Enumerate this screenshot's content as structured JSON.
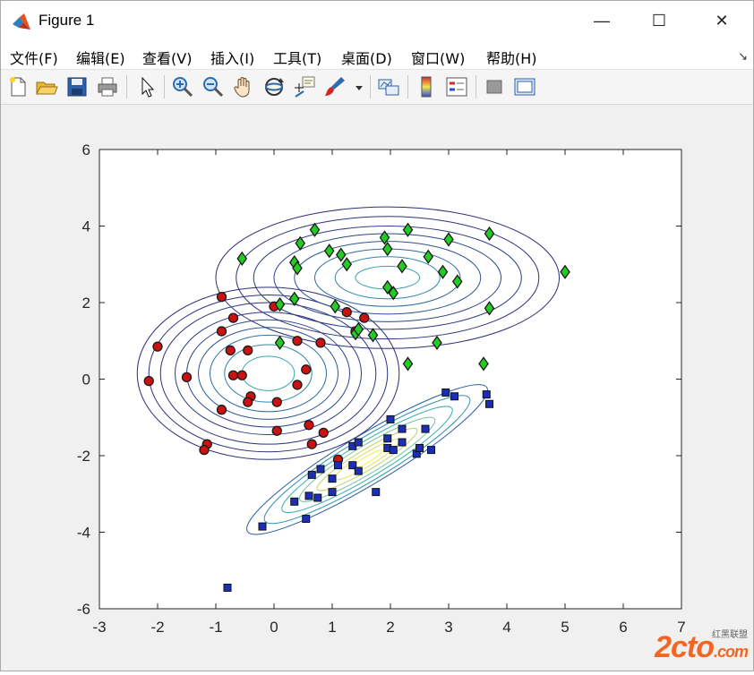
{
  "window": {
    "title": "Figure 1",
    "minimize_glyph": "—",
    "maximize_glyph": "☐",
    "close_glyph": "✕"
  },
  "menu": {
    "items": [
      {
        "label": "文件(F)",
        "name": "menu-file"
      },
      {
        "label": "编辑(E)",
        "name": "menu-edit"
      },
      {
        "label": "查看(V)",
        "name": "menu-view"
      },
      {
        "label": "插入(I)",
        "name": "menu-insert"
      },
      {
        "label": "工具(T)",
        "name": "menu-tools"
      },
      {
        "label": "桌面(D)",
        "name": "menu-desktop"
      },
      {
        "label": "窗口(W)",
        "name": "menu-window"
      },
      {
        "label": "帮助(H)",
        "name": "menu-help"
      }
    ],
    "dock_arrow": "↘"
  },
  "toolbar": {
    "icons": [
      "new-file-icon",
      "open-folder-icon",
      "save-icon",
      "print-icon",
      "pointer-icon",
      "zoom-in-icon",
      "zoom-out-icon",
      "pan-hand-icon",
      "rotate-3d-icon",
      "data-cursor-icon",
      "brush-icon",
      "link-plot-icon",
      "colorbar-icon",
      "legend-icon",
      "hide-plot-tools-icon",
      "show-plot-tools-icon"
    ]
  },
  "colors": {
    "class_red": "#cc1111",
    "class_green": "#22cc22",
    "class_blue": "#1a2fb5",
    "contour_dark": "#2b2f7a",
    "watermark": "#f26522"
  },
  "watermark": {
    "main": "2cto",
    "sub": ".com",
    "small": "红黑联盟"
  },
  "chart_data": {
    "type": "scatter",
    "title": "",
    "xlabel": "",
    "ylabel": "",
    "xlim": [
      -3,
      7
    ],
    "ylim": [
      -6,
      6
    ],
    "xticks": [
      -3,
      -2,
      -1,
      0,
      1,
      2,
      3,
      4,
      5,
      6,
      7
    ],
    "yticks": [
      -6,
      -4,
      -2,
      0,
      2,
      4,
      6
    ],
    "grid": false,
    "series": [
      {
        "marker": "circle",
        "color": "#cc1111",
        "points": [
          [
            -2.0,
            0.85
          ],
          [
            -2.15,
            -0.05
          ],
          [
            -1.5,
            0.05
          ],
          [
            -0.9,
            2.15
          ],
          [
            -0.7,
            1.6
          ],
          [
            -0.9,
            1.25
          ],
          [
            -0.75,
            0.75
          ],
          [
            -0.7,
            0.1
          ],
          [
            -0.55,
            0.1
          ],
          [
            -0.45,
            0.75
          ],
          [
            -0.4,
            -0.45
          ],
          [
            -0.45,
            -0.6
          ],
          [
            -0.9,
            -0.8
          ],
          [
            -1.15,
            -1.7
          ],
          [
            -1.2,
            -1.85
          ],
          [
            0.0,
            1.9
          ],
          [
            0.05,
            -0.6
          ],
          [
            0.05,
            -1.35
          ],
          [
            0.4,
            1.0
          ],
          [
            0.4,
            -0.15
          ],
          [
            0.55,
            0.25
          ],
          [
            0.6,
            -1.2
          ],
          [
            0.65,
            -1.7
          ],
          [
            0.85,
            -1.4
          ],
          [
            0.8,
            0.95
          ],
          [
            1.1,
            -2.1
          ],
          [
            1.25,
            1.75
          ],
          [
            1.4,
            1.25
          ],
          [
            1.55,
            1.6
          ]
        ]
      },
      {
        "marker": "diamond",
        "color": "#22cc22",
        "points": [
          [
            -0.55,
            3.15
          ],
          [
            0.1,
            1.95
          ],
          [
            0.1,
            0.95
          ],
          [
            0.35,
            3.05
          ],
          [
            0.35,
            2.1
          ],
          [
            0.4,
            2.9
          ],
          [
            0.45,
            3.55
          ],
          [
            0.7,
            3.9
          ],
          [
            0.95,
            3.35
          ],
          [
            1.05,
            1.9
          ],
          [
            1.15,
            3.25
          ],
          [
            1.25,
            3.0
          ],
          [
            1.4,
            1.2
          ],
          [
            1.45,
            1.3
          ],
          [
            1.7,
            1.15
          ],
          [
            1.9,
            3.7
          ],
          [
            1.95,
            3.4
          ],
          [
            1.95,
            2.4
          ],
          [
            2.05,
            2.25
          ],
          [
            2.2,
            2.95
          ],
          [
            2.3,
            3.9
          ],
          [
            2.3,
            0.4
          ],
          [
            2.65,
            3.2
          ],
          [
            2.8,
            0.95
          ],
          [
            2.9,
            2.8
          ],
          [
            3.0,
            3.65
          ],
          [
            3.15,
            2.55
          ],
          [
            3.6,
            0.4
          ],
          [
            3.7,
            3.8
          ],
          [
            3.7,
            1.85
          ],
          [
            5.0,
            2.8
          ]
        ]
      },
      {
        "marker": "square",
        "color": "#1a2fb5",
        "points": [
          [
            -0.2,
            -3.85
          ],
          [
            -0.8,
            -5.45
          ],
          [
            0.35,
            -3.2
          ],
          [
            0.55,
            -3.65
          ],
          [
            0.6,
            -3.05
          ],
          [
            0.65,
            -2.5
          ],
          [
            0.75,
            -3.1
          ],
          [
            0.8,
            -2.35
          ],
          [
            1.0,
            -2.95
          ],
          [
            1.0,
            -2.6
          ],
          [
            1.1,
            -2.25
          ],
          [
            1.35,
            -1.75
          ],
          [
            1.35,
            -2.25
          ],
          [
            1.45,
            -1.65
          ],
          [
            1.45,
            -2.4
          ],
          [
            1.75,
            -2.95
          ],
          [
            1.95,
            -1.8
          ],
          [
            1.95,
            -1.55
          ],
          [
            2.0,
            -1.05
          ],
          [
            2.05,
            -1.85
          ],
          [
            2.2,
            -1.3
          ],
          [
            2.2,
            -1.65
          ],
          [
            2.45,
            -1.95
          ],
          [
            2.5,
            -1.8
          ],
          [
            2.6,
            -1.3
          ],
          [
            2.7,
            -1.85
          ],
          [
            2.95,
            -0.35
          ],
          [
            3.1,
            -0.45
          ],
          [
            3.65,
            -0.4
          ],
          [
            3.7,
            -0.65
          ]
        ]
      }
    ],
    "contours": [
      {
        "center": [
          -0.1,
          0.15
        ],
        "rx": [
          0.45,
          0.75,
          1.0,
          1.2,
          1.4,
          1.6,
          1.85,
          2.05,
          2.25
        ],
        "ry": [
          0.45,
          0.75,
          1.0,
          1.2,
          1.4,
          1.6,
          1.85,
          2.05,
          2.25
        ],
        "angle": 0,
        "colors": [
          "#3aa6a6",
          "#2f86a9",
          "#2b6aa0",
          "#2b5596",
          "#2b468c",
          "#2b3b84",
          "#2b337e",
          "#2b307b",
          "#2b2f7a"
        ]
      },
      {
        "center": [
          1.95,
          2.65
        ],
        "rx": [
          0.55,
          0.9,
          1.25,
          1.6,
          1.95,
          2.3,
          2.6,
          2.95
        ],
        "ry": [
          0.3,
          0.55,
          0.75,
          0.95,
          1.15,
          1.35,
          1.6,
          1.85
        ],
        "angle": 0,
        "colors": [
          "#3aa6a6",
          "#2f86a9",
          "#2b6aa0",
          "#2b5596",
          "#2b468c",
          "#2b3b84",
          "#2b337e",
          "#2b2f7a"
        ]
      },
      {
        "center": [
          1.6,
          -2.1
        ],
        "rx": [
          0.3,
          0.65,
          1.0,
          1.35,
          1.7,
          2.05,
          2.4
        ],
        "ry": [
          0.08,
          0.17,
          0.26,
          0.36,
          0.45,
          0.55,
          0.64
        ],
        "angle": 31,
        "colors": [
          "#f2f24a",
          "#e2dc5a",
          "#bcd26a",
          "#78c39a",
          "#3ab0b0",
          "#2a8fb0",
          "#2b5ca0"
        ]
      }
    ]
  }
}
